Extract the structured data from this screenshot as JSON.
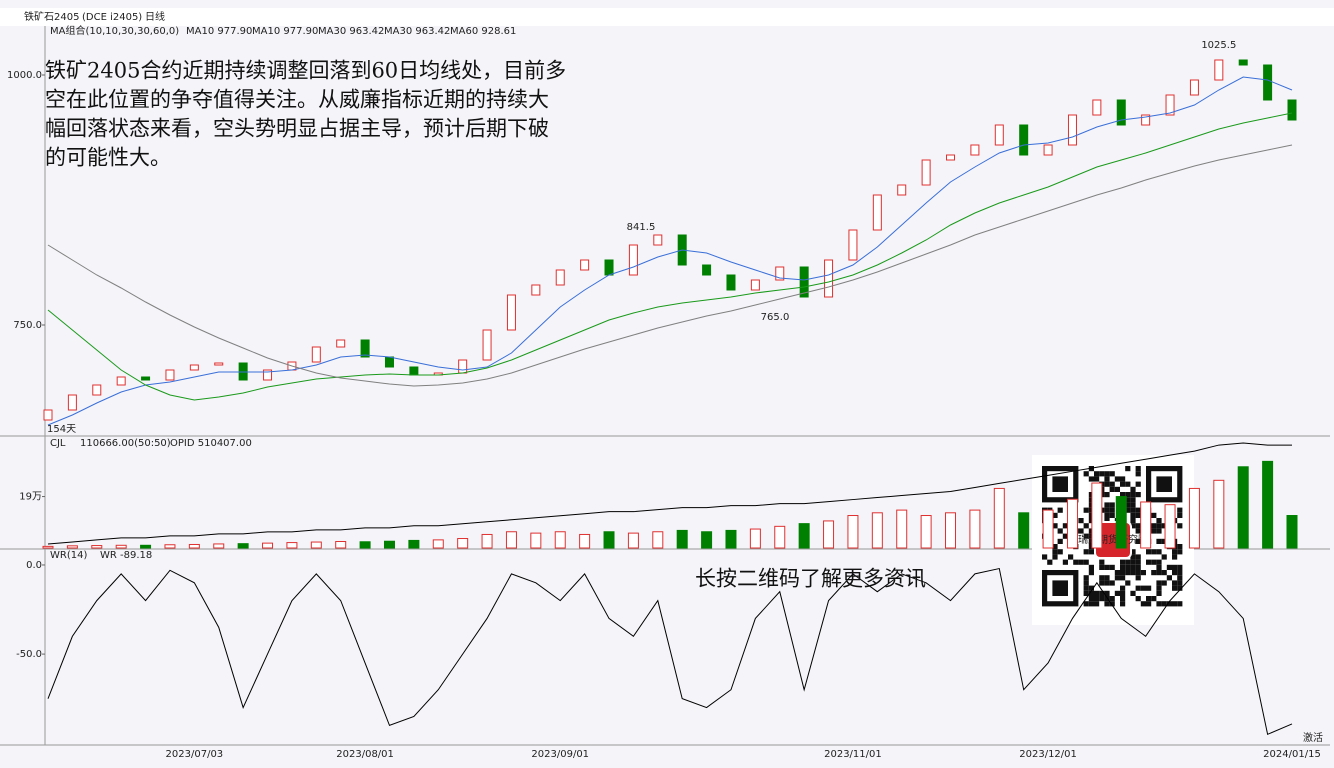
{
  "header": {
    "symbol": "铁矿石2405",
    "code": "(DCE i2405)",
    "period": "日线"
  },
  "annotation": {
    "lines": [
      "铁矿2405合约近期持续调整回落到60日均线处，目前多",
      "空在此位置的争夺值得关注。从威廉指标近期的持续大",
      "幅回落状态来看，空头势明显占据主导，预计后期下破",
      "的可能性大。"
    ],
    "qr_caption": "长按二维码了解更多资讯",
    "qr_logo": "瑞达期货研究院",
    "watermark": "激活"
  },
  "chart_data": [
    {
      "type": "candlestick",
      "legend_title": "MA组合(10,10,30,30,60,0)",
      "legend_extra": [
        {
          "name": "MA10 977.90",
          "color": "#000000"
        },
        {
          "name": "MA30 963.42",
          "color": "#e020e0"
        }
      ],
      "high_label": "1025.5",
      "peak_label": "841.5",
      "low_label": "765.0",
      "days_label": "154天",
      "categories": [
        null,
        null,
        null,
        null,
        null,
        null,
        "2023/07/03",
        null,
        null,
        null,
        null,
        null,
        null,
        "2023/08/01",
        null,
        null,
        null,
        null,
        null,
        null,
        null,
        "2023/09/01",
        null,
        null,
        null,
        null,
        null,
        null,
        null,
        null,
        null,
        null,
        null,
        "2023/11/01",
        null,
        null,
        null,
        null,
        null,
        null,
        null,
        "2023/12/01",
        null,
        null,
        null,
        null,
        null,
        null,
        null,
        null,
        null,
        "2024/01/15"
      ],
      "first_open": 655,
      "close": [
        665,
        680,
        690,
        698,
        695,
        705,
        710,
        712,
        695,
        705,
        713,
        728,
        735,
        718,
        708,
        700,
        702,
        715,
        745,
        780,
        790,
        805,
        815,
        800,
        830,
        840,
        810,
        800,
        785,
        795,
        808,
        778,
        815,
        845,
        880,
        890,
        915,
        920,
        930,
        950,
        920,
        930,
        960,
        975,
        950,
        960,
        980,
        995,
        1015,
        1010,
        975,
        955
      ],
      "up_color": "#e03030",
      "down_color": "#008000",
      "series": [
        {
          "name": "MA10 977.90",
          "color": "#3a6fd8",
          "values": [
            650,
            660,
            672,
            683,
            690,
            693,
            698,
            703,
            703,
            703,
            705,
            710,
            718,
            720,
            718,
            713,
            708,
            705,
            708,
            722,
            745,
            768,
            785,
            800,
            808,
            818,
            825,
            822,
            813,
            805,
            797,
            795,
            800,
            810,
            828,
            850,
            872,
            893,
            908,
            922,
            930,
            932,
            938,
            948,
            955,
            958,
            962,
            970,
            985,
            998,
            995,
            985
          ]
        },
        {
          "name": "MA30 963.42",
          "color": "#1a9a1a",
          "values": [
            765,
            745,
            725,
            705,
            690,
            680,
            675,
            678,
            682,
            688,
            692,
            696,
            698,
            700,
            701,
            700,
            700,
            702,
            707,
            715,
            725,
            735,
            745,
            755,
            762,
            768,
            772,
            775,
            778,
            782,
            785,
            788,
            793,
            800,
            810,
            822,
            835,
            850,
            862,
            872,
            880,
            888,
            898,
            908,
            915,
            922,
            930,
            938,
            946,
            952,
            957,
            962
          ]
        },
        {
          "name": "MA60 928.61",
          "color": "#808080",
          "values": [
            830,
            815,
            800,
            787,
            773,
            760,
            748,
            737,
            727,
            717,
            709,
            702,
            697,
            694,
            691,
            689,
            690,
            692,
            696,
            702,
            710,
            718,
            726,
            733,
            740,
            747,
            753,
            759,
            764,
            770,
            776,
            782,
            788,
            795,
            803,
            812,
            821,
            830,
            840,
            848,
            856,
            864,
            872,
            880,
            887,
            895,
            902,
            909,
            915,
            920,
            925,
            930
          ]
        }
      ],
      "ylim": [
        640,
        1047
      ],
      "yticks": [
        {
          "value": 750,
          "label": "750.0"
        },
        {
          "value": 1000,
          "label": "1000.0"
        }
      ]
    },
    {
      "type": "volume",
      "title": "CJL",
      "value_text": "110666.00(50:50)",
      "values": [
        0.6,
        0.8,
        0.9,
        1,
        1,
        1.2,
        1.3,
        1.5,
        1.6,
        1.8,
        2,
        2.2,
        2.4,
        2.3,
        2.5,
        2.8,
        3,
        3.5,
        5,
        6,
        5.5,
        6,
        5,
        6,
        5.5,
        6,
        6.5,
        6,
        6.5,
        7,
        8,
        9,
        10,
        12,
        13,
        14,
        12,
        13,
        14,
        22,
        13,
        14,
        18,
        24,
        19,
        17,
        16,
        22,
        25,
        30,
        32,
        12
      ],
      "series": [
        {
          "name": "OPID 510407.00",
          "color": "#000000",
          "axis": "y2",
          "values": [
            2,
            3,
            4,
            5,
            5,
            6,
            6,
            7,
            7,
            8,
            8,
            9,
            9,
            10,
            10,
            11,
            11,
            12,
            13,
            14,
            15,
            16,
            17,
            18,
            18,
            19,
            20,
            20,
            21,
            21,
            22,
            22,
            23,
            24,
            25,
            26,
            27,
            28,
            30,
            32,
            34,
            36,
            38,
            40,
            42,
            44,
            46,
            48,
            51,
            52,
            51,
            51
          ]
        }
      ],
      "ylim": [
        0,
        41
      ],
      "yticks": [
        {
          "value": 19,
          "label": "19万"
        }
      ],
      "y2lim": [
        0,
        55
      ]
    },
    {
      "type": "line",
      "title": "WR(14)",
      "series": [
        {
          "name": "WR -89.18",
          "color": "#000000",
          "values": [
            -75,
            -40,
            -20,
            -5,
            -20,
            -3,
            -10,
            -35,
            -80,
            -50,
            -20,
            -5,
            -20,
            -55,
            -90,
            -85,
            -70,
            -50,
            -30,
            -5,
            -10,
            -20,
            -5,
            -30,
            -40,
            -20,
            -75,
            -80,
            -70,
            -30,
            -15,
            -70,
            -20,
            -5,
            -15,
            -5,
            -10,
            -20,
            -5,
            -2,
            -70,
            -55,
            -30,
            -10,
            -30,
            -40,
            -20,
            -5,
            -15,
            -30,
            -95,
            -89.18
          ]
        }
      ],
      "ylim": [
        -101,
        8.4
      ],
      "yticks": [
        {
          "value": 0,
          "label": "0.0"
        },
        {
          "value": -50,
          "label": "-50.0"
        }
      ]
    }
  ]
}
